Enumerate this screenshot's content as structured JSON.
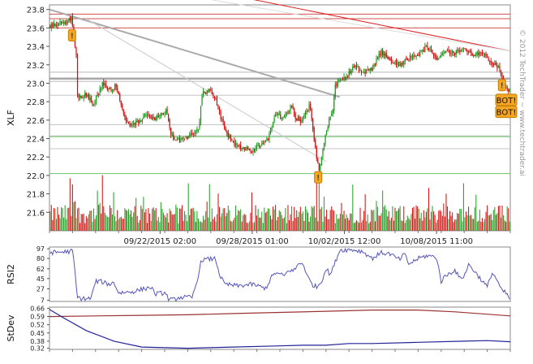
{
  "watermark": "© 2012 TechTrader ~ www.techtrader.ai",
  "chart_data": [
    {
      "type": "candlestick",
      "panel": "price",
      "ylabel": "XLF",
      "ylim": [
        21.4,
        23.85
      ],
      "yticks": [
        21.6,
        21.8,
        22.0,
        22.2,
        22.4,
        22.6,
        22.8,
        23.0,
        23.2,
        23.4,
        23.6,
        23.8
      ],
      "ytick_labels": [
        "21.6",
        "21.8",
        "22.0",
        "22.2",
        "22.4",
        "22.6",
        "22.8",
        "23.0",
        "23.2",
        "23.4",
        "23.6",
        "23.8"
      ],
      "x_range": [
        0,
        100
      ],
      "xtick_labels": [
        {
          "x": 24,
          "label": "09/22/2015 02:00"
        },
        {
          "x": 44,
          "label": "09/28/2015 01:00"
        },
        {
          "x": 64,
          "label": "10/02/2015 12:00"
        },
        {
          "x": 84,
          "label": "10/08/2015 11:00"
        }
      ],
      "grid": false,
      "colors": {
        "up": "#1a9a1a",
        "down": "#cc1111"
      },
      "path": [
        [
          0,
          23.62
        ],
        [
          4,
          23.68
        ],
        [
          4.8,
          23.7
        ],
        [
          5.2,
          23.5
        ],
        [
          6,
          23.25
        ],
        [
          5.8,
          22.88
        ],
        [
          6.5,
          22.85
        ],
        [
          8,
          22.88
        ],
        [
          9.5,
          22.78
        ],
        [
          11.5,
          23.0
        ],
        [
          12.5,
          22.95
        ],
        [
          13.5,
          22.92
        ],
        [
          14.5,
          22.98
        ],
        [
          15.5,
          22.75
        ],
        [
          16.5,
          22.6
        ],
        [
          17.5,
          22.53
        ],
        [
          19,
          22.58
        ],
        [
          21,
          22.65
        ],
        [
          22.5,
          22.62
        ],
        [
          24,
          22.65
        ],
        [
          25.5,
          22.7
        ],
        [
          26.5,
          22.42
        ],
        [
          28,
          22.38
        ],
        [
          29.5,
          22.4
        ],
        [
          31,
          22.45
        ],
        [
          32.5,
          22.52
        ],
        [
          33,
          22.88
        ],
        [
          35,
          22.92
        ],
        [
          36,
          22.85
        ],
        [
          37,
          22.65
        ],
        [
          38.5,
          22.45
        ],
        [
          40,
          22.35
        ],
        [
          42,
          22.3
        ],
        [
          44,
          22.28
        ],
        [
          46,
          22.32
        ],
        [
          47.5,
          22.4
        ],
        [
          48.5,
          22.58
        ],
        [
          49.5,
          22.68
        ],
        [
          50.5,
          22.62
        ],
        [
          51.5,
          22.68
        ],
        [
          52.5,
          22.75
        ],
        [
          53.5,
          22.62
        ],
        [
          54.5,
          22.6
        ],
        [
          55.5,
          22.68
        ],
        [
          56.5,
          22.78
        ],
        [
          57,
          22.55
        ],
        [
          58,
          22.2
        ],
        [
          58.5,
          22.05
        ],
        [
          59.5,
          22.35
        ],
        [
          60.5,
          22.55
        ],
        [
          61.5,
          22.72
        ],
        [
          62,
          22.96
        ],
        [
          63,
          23.05
        ],
        [
          64.5,
          23.08
        ],
        [
          66,
          23.18
        ],
        [
          68,
          23.12
        ],
        [
          70,
          23.15
        ],
        [
          72,
          23.35
        ],
        [
          74,
          23.25
        ],
        [
          76,
          23.2
        ],
        [
          78,
          23.28
        ],
        [
          80,
          23.3
        ],
        [
          82,
          23.4
        ],
        [
          84,
          23.25
        ],
        [
          86,
          23.35
        ],
        [
          88,
          23.32
        ],
        [
          90,
          23.36
        ],
        [
          92,
          23.3
        ],
        [
          94,
          23.34
        ],
        [
          95,
          23.26
        ],
        [
          96.5,
          23.2
        ],
        [
          97.5,
          23.16
        ],
        [
          98.5,
          23.0
        ],
        [
          99.5,
          22.92
        ]
      ],
      "ohlc_count": 370,
      "horizontal_lines": [
        {
          "y": 23.75,
          "color": "#cc3333"
        },
        {
          "y": 23.7,
          "color": "#cc3333"
        },
        {
          "y": 23.6,
          "color": "#cc3333"
        },
        {
          "y": 23.05,
          "color": "#999999"
        },
        {
          "y": 23.12,
          "color": "#aaaaaa"
        },
        {
          "y": 23.02,
          "color": "#aaaaaa"
        },
        {
          "y": 22.87,
          "color": "#bbbbbb"
        },
        {
          "y": 22.55,
          "color": "#bbbbbb"
        },
        {
          "y": 22.43,
          "color": "#bbbbbb"
        },
        {
          "y": 22.29,
          "color": "#bbbbbb"
        },
        {
          "y": 22.02,
          "color": "#55bb55"
        },
        {
          "y": 22.42,
          "color": "#55bb55"
        }
      ],
      "trend_lines": [
        {
          "p1": [
            0,
            23.8
          ],
          "p2": [
            63,
            22.85
          ],
          "color": "#aaaaaa"
        },
        {
          "p1": [
            8,
            23.7
          ],
          "p2": [
            60,
            22.15
          ],
          "color": "#cccccc"
        },
        {
          "p1": [
            40,
            23.95
          ],
          "p2": [
            100,
            23.35
          ],
          "color": "#dd2222"
        },
        {
          "p1": [
            30,
            23.95
          ],
          "p2": [
            100,
            23.35
          ],
          "color": "#dddddd"
        }
      ],
      "signals": [
        {
          "x": 4.9,
          "y": 23.52,
          "text": "!"
        },
        {
          "x": 58.3,
          "y": 21.98,
          "text": "!"
        },
        {
          "x": 98.2,
          "y": 22.98,
          "text": "!"
        },
        {
          "x": 100,
          "y": 22.82,
          "text": "BOT!"
        },
        {
          "x": 100,
          "y": 22.69,
          "text": "BOT!"
        }
      ],
      "volume_tall": [
        {
          "x": 4.5,
          "v": 0.85,
          "c": "down"
        },
        {
          "x": 5.0,
          "v": 0.75,
          "c": "down"
        },
        {
          "x": 5.6,
          "v": 0.55,
          "c": "down"
        },
        {
          "x": 10.5,
          "v": 0.65,
          "c": "up"
        },
        {
          "x": 11.0,
          "v": 0.45,
          "c": "up"
        },
        {
          "x": 11.5,
          "v": 0.9,
          "c": "down"
        },
        {
          "x": 20.5,
          "v": 0.55,
          "c": "up"
        },
        {
          "x": 21.0,
          "v": 0.35,
          "c": "down"
        },
        {
          "x": 58.0,
          "v": 0.95,
          "c": "down"
        },
        {
          "x": 58.4,
          "v": 0.8,
          "c": "up"
        },
        {
          "x": 59.5,
          "v": 0.55,
          "c": "up"
        },
        {
          "x": 97.5,
          "v": 0.4,
          "c": "down"
        }
      ]
    },
    {
      "type": "line",
      "panel": "rsi",
      "ylabel": "RSI2",
      "ylim": [
        5,
        100
      ],
      "yticks": [
        7,
        27,
        45,
        62,
        80,
        97
      ],
      "ytick_labels": [
        "7",
        "27",
        "45",
        "62",
        "80",
        "97"
      ],
      "color": "#5555bb",
      "x": [
        0,
        4,
        5,
        5.5,
        6,
        7,
        9,
        10,
        11,
        13,
        14,
        15,
        18,
        21,
        22,
        23,
        25,
        26,
        27,
        28,
        31,
        32,
        33,
        34,
        36,
        37,
        38,
        41,
        44,
        46,
        47,
        48,
        49,
        50,
        51,
        52,
        53,
        54,
        55,
        56,
        57,
        58,
        59,
        60,
        61,
        63,
        64,
        66,
        68,
        70,
        72,
        74,
        75,
        76,
        77,
        78,
        80,
        82,
        84,
        85,
        86,
        87,
        88,
        89,
        90,
        91,
        92,
        93,
        94,
        95,
        96,
        97,
        98,
        99,
        100
      ],
      "y": [
        90,
        92,
        93,
        60,
        12,
        10,
        10,
        40,
        40,
        35,
        38,
        20,
        22,
        28,
        30,
        18,
        20,
        8,
        8,
        12,
        12,
        40,
        78,
        78,
        80,
        50,
        35,
        32,
        35,
        30,
        28,
        45,
        55,
        52,
        50,
        60,
        58,
        70,
        72,
        48,
        35,
        30,
        40,
        62,
        52,
        95,
        95,
        95,
        92,
        80,
        90,
        88,
        82,
        78,
        88,
        70,
        80,
        85,
        82,
        40,
        50,
        55,
        60,
        45,
        50,
        70,
        60,
        50,
        40,
        30,
        55,
        45,
        25,
        20,
        8
      ]
    },
    {
      "type": "line",
      "panel": "stdev",
      "ylabel": "StDev",
      "ylim": [
        0.31,
        0.67
      ],
      "yticks": [
        0.32,
        0.38,
        0.45,
        0.52,
        0.59,
        0.66
      ],
      "ytick_labels": [
        "0.32",
        "0.38",
        "0.45",
        "0.52",
        "0.59",
        "0.66"
      ],
      "series": [
        {
          "color": "#993333",
          "x": [
            0,
            10,
            20,
            30,
            40,
            50,
            60,
            70,
            80,
            88,
            95,
            100
          ],
          "y": [
            0.59,
            0.595,
            0.6,
            0.605,
            0.615,
            0.625,
            0.635,
            0.645,
            0.645,
            0.63,
            0.61,
            0.595
          ]
        },
        {
          "color": "#222299",
          "x": [
            0,
            3,
            8,
            14,
            20,
            30,
            40,
            50,
            55,
            60,
            65,
            70,
            80,
            90,
            95,
            100
          ],
          "y": [
            0.65,
            0.58,
            0.47,
            0.38,
            0.33,
            0.32,
            0.33,
            0.34,
            0.345,
            0.345,
            0.36,
            0.36,
            0.37,
            0.38,
            0.385,
            0.375
          ]
        }
      ]
    }
  ]
}
